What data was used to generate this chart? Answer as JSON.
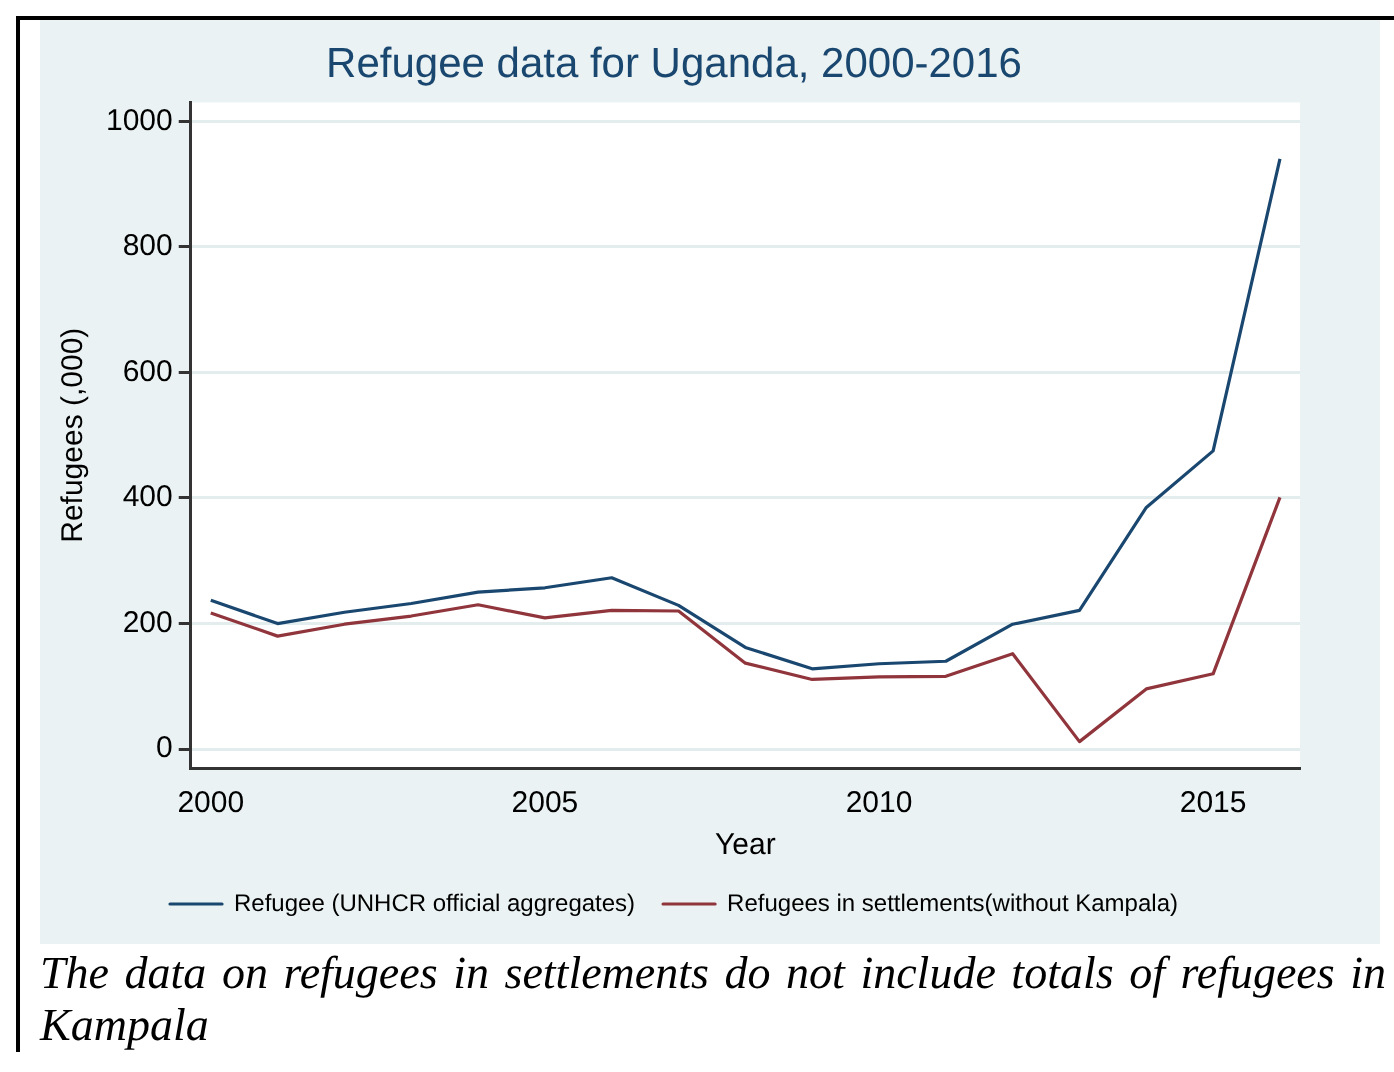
{
  "chart_data": {
    "type": "line",
    "title": "Refugee data for Uganda, 2000-2016",
    "xlabel": "Year",
    "ylabel": "Refugees (,000)",
    "x": [
      2000,
      2001,
      2002,
      2003,
      2004,
      2005,
      2006,
      2007,
      2008,
      2009,
      2010,
      2011,
      2012,
      2013,
      2014,
      2015,
      2016
    ],
    "series": [
      {
        "name": "Refugee (UNHCR official aggregates)",
        "color": "#1a476f",
        "values": [
          237,
          200,
          218,
          232,
          250,
          257,
          273,
          229,
          162,
          128,
          136,
          140,
          199,
          221,
          385,
          475,
          940
        ]
      },
      {
        "name": "Refugees in settlements(without Kampala)",
        "color": "#90353b",
        "values": [
          217,
          180,
          199,
          212,
          230,
          209,
          221,
          220,
          137,
          111,
          115,
          116,
          152,
          12,
          96,
          120,
          401
        ]
      }
    ],
    "xlim": [
      1999.7,
      2016.3
    ],
    "xticks": [
      2000,
      2005,
      2010,
      2015
    ],
    "ylim": [
      -30,
      1030
    ],
    "yticks": [
      0,
      200,
      400,
      600,
      800,
      1000
    ],
    "grid": "y",
    "legend": "bottom",
    "marker": "none",
    "line_style": "solid",
    "annotations": [
      "The data on refugees in settlements do not include totals of refugees in Kampala"
    ]
  }
}
